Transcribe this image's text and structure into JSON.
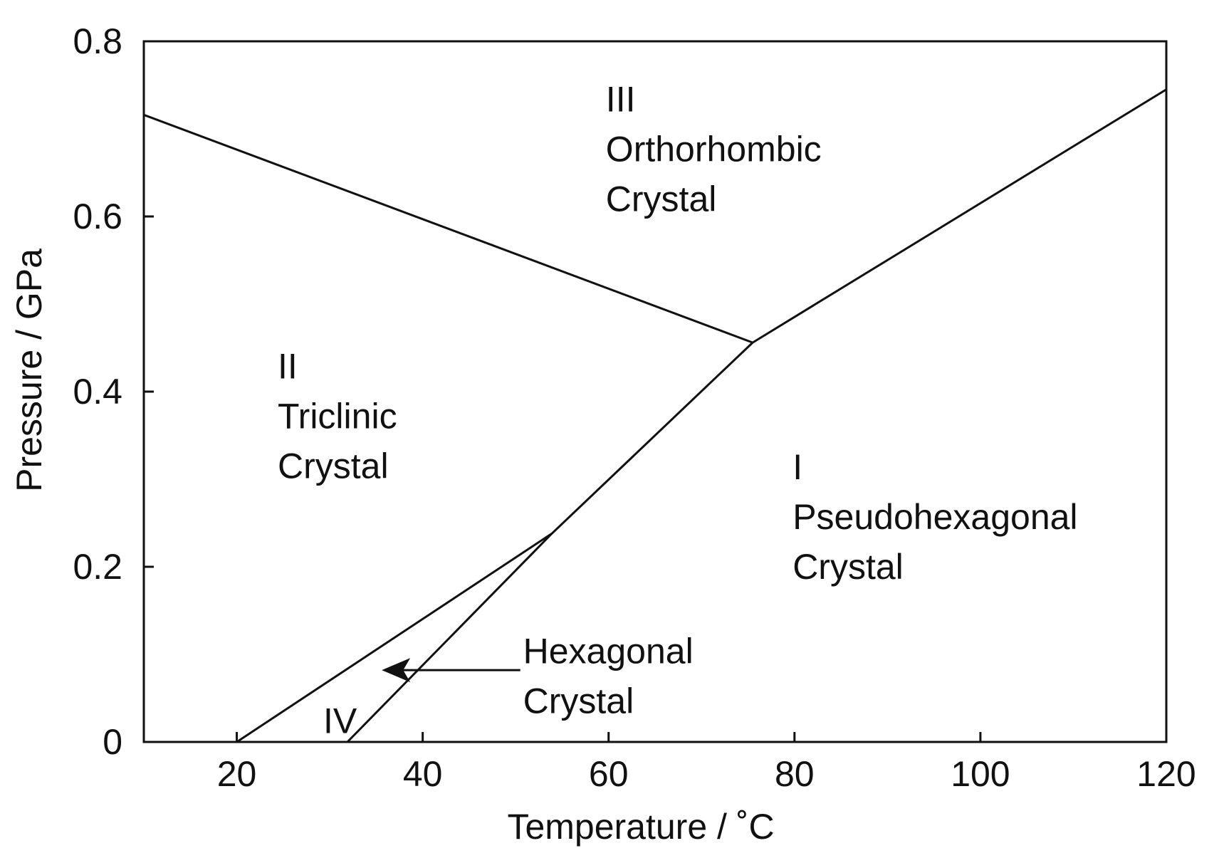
{
  "chart_data": {
    "type": "line",
    "xlabel": "Temperature / ˚C",
    "ylabel": "Pressure / GPa",
    "xlim": [
      10,
      120
    ],
    "ylim": [
      0,
      0.8
    ],
    "xticks": [
      20,
      40,
      60,
      80,
      100,
      120
    ],
    "yticks": [
      0,
      0.2,
      0.4,
      0.6,
      0.8
    ],
    "xtick_labels": [
      "20",
      "40",
      "60",
      "80",
      "100",
      "120"
    ],
    "ytick_labels": [
      "0",
      "0.2",
      "0.4",
      "0.6",
      "0.8"
    ],
    "grid": false,
    "boundaries": [
      {
        "x": [
          10,
          75.5
        ],
        "y": [
          0.716,
          0.456
        ]
      },
      {
        "x": [
          75.5,
          120
        ],
        "y": [
          0.456,
          0.745
        ]
      },
      {
        "x": [
          31.9,
          53.9,
          75.5
        ],
        "y": [
          0,
          0.238,
          0.456
        ]
      },
      {
        "x": [
          20,
          53.9
        ],
        "y": [
          0,
          0.238
        ]
      }
    ],
    "regions": [
      {
        "lines": [
          "III",
          "Orthorhombic",
          "Crystal"
        ],
        "x": 59.7,
        "y": 0.72
      },
      {
        "lines": [
          "II",
          "Triclinic",
          "Crystal"
        ],
        "x": 24.4,
        "y": 0.415
      },
      {
        "lines": [
          "I",
          "Pseudohexagonal",
          "Crystal"
        ],
        "x": 79.8,
        "y": 0.3
      },
      {
        "lines": [
          "IV"
        ],
        "x": 29.3,
        "y": 0.01
      },
      {
        "lines": [
          "Hexagonal",
          "Crystal"
        ],
        "x": 50.8,
        "y": 0.09
      }
    ],
    "annotation_arrow": {
      "from": [
        50.5,
        0.082
      ],
      "to": [
        35.6,
        0.082
      ]
    }
  }
}
